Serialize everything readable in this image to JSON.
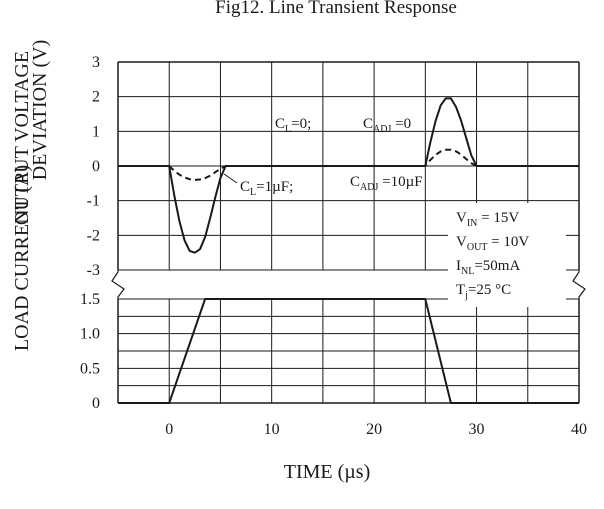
{
  "chart_data": [
    {
      "type": "line",
      "title": "Fig12.  Line Transient Response",
      "ylabel_line1": "OUTPUT VOLTAGE",
      "ylabel_line2": "DEVIATION (V)",
      "xlabel": "TIME (µs)",
      "xlim": [
        -5,
        40
      ],
      "ylim": [
        -3,
        3
      ],
      "yticks": [
        3,
        2,
        1,
        0,
        -1,
        -2,
        -3
      ],
      "grid": true,
      "series": [
        {
          "name": "C_L=0; C_ADJ=0",
          "style": "solid",
          "x": [
            -5,
            0,
            0.5,
            1,
            1.5,
            2,
            2.5,
            3,
            3.5,
            4,
            4.5,
            5,
            5.5,
            25,
            25.5,
            26,
            26.5,
            27,
            27.5,
            28,
            28.5,
            29,
            29.5,
            30,
            40
          ],
          "y": [
            0,
            0,
            -0.85,
            -1.6,
            -2.15,
            -2.45,
            -2.5,
            -2.4,
            -2.05,
            -1.5,
            -0.9,
            -0.35,
            0,
            0,
            0.7,
            1.3,
            1.75,
            1.95,
            1.95,
            1.7,
            1.3,
            0.8,
            0.3,
            0,
            0
          ]
        },
        {
          "name": "C_L=1µF; C_ADJ=10µF",
          "style": "dashed",
          "x": [
            0,
            0.5,
            1,
            1.5,
            2,
            2.5,
            3,
            3.5,
            4,
            4.5,
            5,
            5.5,
            25,
            25.5,
            26,
            26.5,
            27,
            27.5,
            28,
            28.5,
            29,
            29.5,
            30
          ],
          "y": [
            0,
            -0.14,
            -0.25,
            -0.33,
            -0.38,
            -0.4,
            -0.39,
            -0.35,
            -0.28,
            -0.18,
            -0.08,
            0,
            0,
            0.18,
            0.32,
            0.42,
            0.47,
            0.47,
            0.42,
            0.33,
            0.2,
            0.08,
            0
          ]
        }
      ],
      "annotations": {
        "cl0_base": "C",
        "cl0_sub": "L",
        "cl0_rest": "=0;",
        "cadj0_base": "C",
        "cadj0_sub": "ADJ",
        "cadj0_rest": " =0",
        "cl1_base": "C",
        "cl1_sub": "L",
        "cl1_rest": "=1µF;",
        "cadj10_base": "C",
        "cadj10_sub": "ADJ",
        "cadj10_rest": " =10µF"
      }
    },
    {
      "type": "line",
      "ylabel": "LOAD CURRENT (A)",
      "xlabel": "TIME (µs)",
      "xlim": [
        -5,
        40
      ],
      "ylim": [
        0,
        1.5
      ],
      "xticks": [
        "0",
        "10",
        "20",
        "30",
        "40"
      ],
      "yticks": [
        "1.5",
        "1.0",
        "0.5",
        "0"
      ],
      "grid": true,
      "series": [
        {
          "name": "load current",
          "style": "solid",
          "x": [
            -5,
            0,
            3.5,
            25,
            27.5,
            40
          ],
          "y": [
            0,
            0,
            1.5,
            1.5,
            0,
            0
          ]
        }
      ]
    }
  ],
  "conditions": {
    "vin_base": "V",
    "vin_sub": "IN",
    "vin_rest": " = 15V",
    "vout_base": "V",
    "vout_sub": "OUT",
    "vout_rest": " = 10V",
    "inl_base": "I",
    "inl_sub": "NL",
    "inl_rest": "=50mA",
    "tj_base": "T",
    "tj_sub": "j",
    "tj_rest": "=25 °C"
  },
  "colors": {
    "ink": "#1a1a1a",
    "background": "#ffffff"
  }
}
